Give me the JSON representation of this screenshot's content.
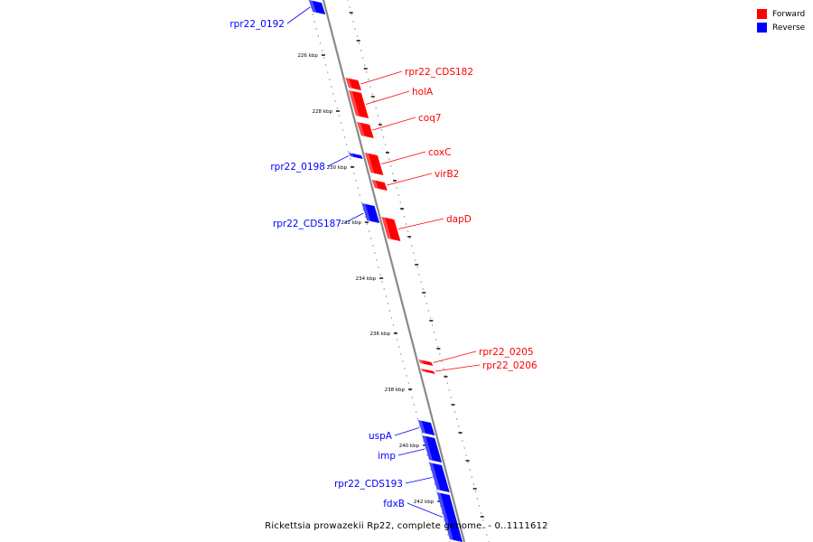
{
  "caption": "Rickettsia prowazekii Rp22, complete genome. - 0..1111612",
  "colors": {
    "forward": "#ff0000",
    "reverse": "#0000ff",
    "backbone": "#8a8a8a"
  },
  "legend": [
    {
      "label": "Forward",
      "color": "#ff0000"
    },
    {
      "label": "Reverse",
      "color": "#0000ff"
    }
  ],
  "tick_labels": [
    "226 kbp",
    "228 kbp",
    "230 kbp",
    "232 kbp",
    "234 kbp",
    "236 kbp",
    "238 kbp",
    "240 kbp",
    "242 kbp"
  ],
  "genes": [
    {
      "name": "rpr22_0192",
      "strand": "reverse"
    },
    {
      "name": "rpr22_CDS182",
      "strand": "forward"
    },
    {
      "name": "holA",
      "strand": "forward"
    },
    {
      "name": "coq7",
      "strand": "forward"
    },
    {
      "name": "rpr22_0198",
      "strand": "reverse"
    },
    {
      "name": "coxC",
      "strand": "forward"
    },
    {
      "name": "virB2",
      "strand": "forward"
    },
    {
      "name": "rpr22_CDS187",
      "strand": "reverse"
    },
    {
      "name": "dapD",
      "strand": "forward"
    },
    {
      "name": "rpr22_0205",
      "strand": "forward"
    },
    {
      "name": "rpr22_0206",
      "strand": "forward"
    },
    {
      "name": "uspA",
      "strand": "reverse"
    },
    {
      "name": "imp",
      "strand": "reverse"
    },
    {
      "name": "rpr22_CDS193",
      "strand": "reverse"
    },
    {
      "name": "fdxB",
      "strand": "reverse"
    }
  ]
}
